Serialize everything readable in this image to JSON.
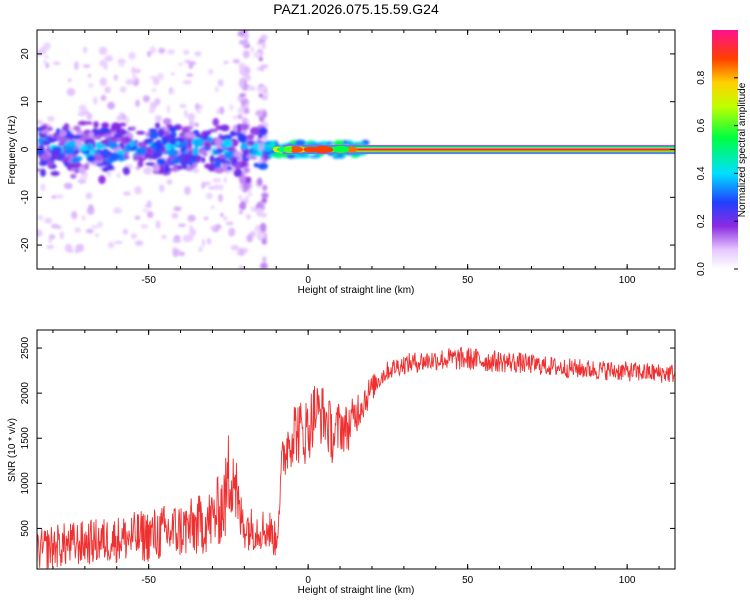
{
  "title": "PAZ1.2026.075.15.59.G24",
  "chart_data": [
    {
      "type": "heatmap",
      "xlabel": "Height of straight line (km)",
      "ylabel": "Frequency (Hz)",
      "xlim": [
        -85,
        115
      ],
      "ylim": [
        -25,
        25
      ],
      "x_ticks": [
        -50,
        0,
        50,
        100
      ],
      "y_ticks": [
        -20,
        -10,
        0,
        10,
        20
      ],
      "x_tick_labels": [
        "-50",
        "0",
        "50",
        "100"
      ],
      "y_tick_labels": [
        "-20",
        "-10",
        "0",
        "10",
        "20"
      ],
      "colorbar": {
        "label": "Normalized spectral amplitude",
        "range": [
          0,
          1
        ],
        "ticks": [
          0.0,
          0.2,
          0.4,
          0.6,
          0.8
        ],
        "tick_labels": [
          "0.0",
          "0.2",
          "0.4",
          "0.6",
          "0.8"
        ]
      },
      "description_segments": [
        {
          "x_range": [
            -85,
            -13
          ],
          "freq_spread": [
            -6,
            6
          ],
          "amplitude": [
            0.1,
            0.45
          ]
        },
        {
          "x_range": [
            -13,
            18
          ],
          "freq_spread": [
            -1.5,
            1.5
          ],
          "amplitude": [
            0.4,
            0.8
          ]
        },
        {
          "x_range": [
            18,
            115
          ],
          "freq_spread": [
            -0.3,
            0.3
          ],
          "amplitude": [
            0.95,
            1.0
          ]
        }
      ]
    },
    {
      "type": "line",
      "xlabel": "Height of straight line (km)",
      "ylabel": "SNR (10 * v/v)",
      "xlim": [
        -85,
        115
      ],
      "ylim": [
        50,
        2700
      ],
      "x_ticks": [
        -50,
        0,
        50,
        100
      ],
      "y_ticks": [
        500,
        1000,
        1500,
        2000,
        2500
      ],
      "x_tick_labels": [
        "-50",
        "0",
        "50",
        "100"
      ],
      "y_tick_labels": [
        "500",
        "1000",
        "1500",
        "2000",
        "2500"
      ],
      "series": [
        {
          "name": "SNR",
          "color": "#f03030",
          "x": [
            -85,
            -80,
            -75,
            -70,
            -65,
            -60,
            -55,
            -50,
            -45,
            -40,
            -35,
            -30,
            -26,
            -24,
            -23,
            -22,
            -21,
            -20,
            -18,
            -15,
            -12,
            -10,
            -8,
            -6,
            -4,
            -2,
            0,
            2,
            5,
            8,
            10,
            12,
            14,
            16,
            18,
            20,
            22,
            25,
            28,
            30,
            35,
            40,
            45,
            50,
            55,
            60,
            65,
            70,
            75,
            80,
            85,
            90,
            95,
            100,
            105,
            110,
            115
          ],
          "values": [
            250,
            300,
            320,
            340,
            360,
            380,
            400,
            420,
            450,
            480,
            520,
            600,
            800,
            1300,
            1100,
            700,
            600,
            550,
            500,
            500,
            480,
            350,
            1250,
            1500,
            1600,
            1550,
            1600,
            1800,
            1750,
            1500,
            1650,
            1600,
            1700,
            1850,
            1950,
            2050,
            2150,
            2250,
            2300,
            2320,
            2350,
            2370,
            2380,
            2380,
            2360,
            2350,
            2340,
            2320,
            2300,
            2280,
            2270,
            2260,
            2250,
            2240,
            2230,
            2220,
            2220
          ],
          "noise_amplitude": [
            220,
            250,
            250,
            250,
            260,
            260,
            280,
            300,
            320,
            320,
            340,
            360,
            450,
            700,
            600,
            350,
            300,
            280,
            250,
            240,
            230,
            200,
            300,
            350,
            380,
            380,
            380,
            350,
            340,
            320,
            300,
            280,
            250,
            230,
            200,
            150,
            120,
            110,
            110,
            110,
            120,
            120,
            130,
            130,
            130,
            120,
            120,
            110,
            110,
            110,
            110,
            110,
            110,
            110,
            110,
            110,
            110
          ]
        }
      ]
    }
  ]
}
